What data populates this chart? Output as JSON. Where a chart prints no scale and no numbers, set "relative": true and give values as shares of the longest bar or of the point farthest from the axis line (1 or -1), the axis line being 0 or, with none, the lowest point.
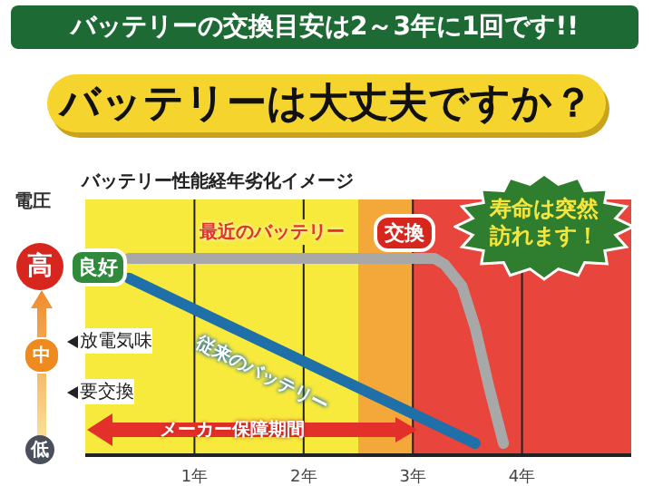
{
  "chart_data": {
    "type": "line",
    "title": "バッテリーの交換目安は2～3年に1回です!!",
    "subtitle": "バッテリーは大丈夫ですか？",
    "ylabel": "電圧",
    "annotations": [
      "バッテリー性能経年劣化イメージ",
      "高",
      "中",
      "低",
      "良好",
      "放電気味",
      "要交換",
      "交換",
      "寿命は突然訪れます！",
      "メーカー保障期間"
    ],
    "relative": true,
    "xlim": [
      0,
      5
    ],
    "xticks": [
      {
        "value": 1,
        "label": "1年"
      },
      {
        "value": 2,
        "label": "2年"
      },
      {
        "value": 3,
        "label": "3年"
      },
      {
        "value": 4,
        "label": "4年"
      }
    ],
    "series": [
      {
        "name": "最近のバッテリー",
        "color": "#a8a8a8",
        "x": [
          0.4,
          3.2,
          3.29,
          3.45,
          3.57,
          3.7,
          3.83
        ],
        "values": [
          1,
          1,
          0.97,
          0.86,
          0.65,
          0.34,
          0.06
        ]
      },
      {
        "name": "従来のバッテリー",
        "color": "#1f6fa8",
        "x": [
          0.4,
          3.57
        ],
        "values": [
          0.9,
          0.06
        ]
      }
    ],
    "bands": [
      {
        "axis": "x",
        "from": 0,
        "to": 2.5,
        "color": "#f7ea3c"
      },
      {
        "axis": "x",
        "from": 2.5,
        "to": 3,
        "color": "#f5a83a"
      },
      {
        "axis": "x",
        "from": 3,
        "to": 5,
        "color": "#e8453c"
      }
    ],
    "grid": "x",
    "legend": false,
    "marker": "none",
    "line_style": "solid"
  }
}
